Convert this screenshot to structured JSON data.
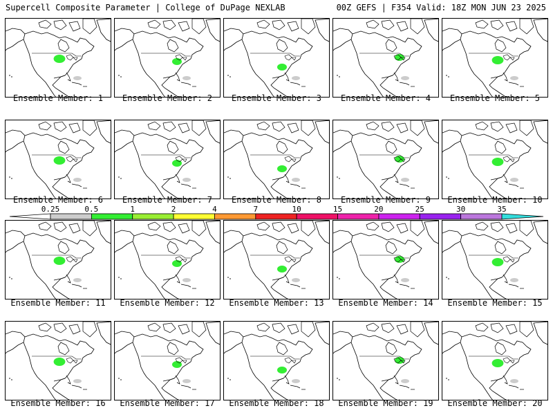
{
  "header": {
    "title": "Supercell Composite Parameter | College of DuPage NEXLAB",
    "valid": "00Z GEFS | F354 Valid: 18Z MON JUN 23 2025"
  },
  "members": [
    "Ensemble Member: 1",
    "Ensemble Member: 2",
    "Ensemble Member: 3",
    "Ensemble Member: 4",
    "Ensemble Member: 5",
    "Ensemble Member: 6",
    "Ensemble Member: 7",
    "Ensemble Member: 8",
    "Ensemble Member: 9",
    "Ensemble Member: 10",
    "Ensemble Member: 11",
    "Ensemble Member: 12",
    "Ensemble Member: 13",
    "Ensemble Member: 14",
    "Ensemble Member: 15",
    "Ensemble Member: 16",
    "Ensemble Member: 17",
    "Ensemble Member: 18",
    "Ensemble Member: 19",
    "Ensemble Member: 20"
  ],
  "colorbar": {
    "ticks": [
      "0.25",
      "0.5",
      "1",
      "2",
      "4",
      "7",
      "10",
      "15",
      "20",
      "25",
      "30",
      "35"
    ],
    "colors": [
      "#ffffff",
      "#cccccc",
      "#33ee33",
      "#99ee33",
      "#ffff33",
      "#ff9933",
      "#ee2222",
      "#ee1166",
      "#ee22aa",
      "#cc22ee",
      "#9922ee",
      "#bb77dd",
      "#33dddd"
    ]
  },
  "colors": {
    "background": "#ffffff",
    "outline": "#000000"
  }
}
